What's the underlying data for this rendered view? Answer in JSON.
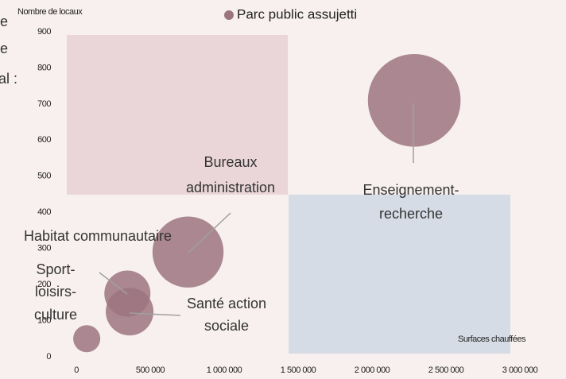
{
  "chart_data": {
    "type": "bubble",
    "cut_text": [
      "e",
      "e",
      "al :"
    ],
    "legend": "Parc public assujetti",
    "y_label": "Nombre de locaux",
    "x_label": "Surfaces chauffées",
    "color": "#9c7480",
    "labels": [
      [
        "Enseignement-",
        "recherche"
      ],
      [
        "Bureaux",
        "administration"
      ],
      [
        "Habitat communautaire"
      ],
      [
        "Santé action",
        "sociale"
      ],
      [
        "Sport-",
        "loisirs-",
        "culture"
      ]
    ],
    "x": [
      2350000,
      820000,
      410000,
      425000,
      135000
    ],
    "values": [
      710,
      290,
      175,
      125,
      50
    ],
    "sizes": [
      3400,
      2000,
      840,
      900,
      290
    ],
    "xlim": [
      0,
      3000000
    ],
    "ylim": [
      0,
      900
    ],
    "xticks": [
      0,
      {
        "value": 500000,
        "label": "500 000"
      },
      {
        "value": 1000000,
        "label": "1 000 000"
      },
      {
        "value": 1500000,
        "label": "1 500 000"
      },
      {
        "value": 2000000,
        "label": "2 000 000"
      },
      {
        "value": 2500000,
        "label": "2 500 000"
      },
      {
        "value": 3000000,
        "label": "3 000 000"
      }
    ],
    "yticks": [
      0,
      100,
      200,
      300,
      400,
      500,
      600,
      700,
      800,
      900
    ]
  }
}
